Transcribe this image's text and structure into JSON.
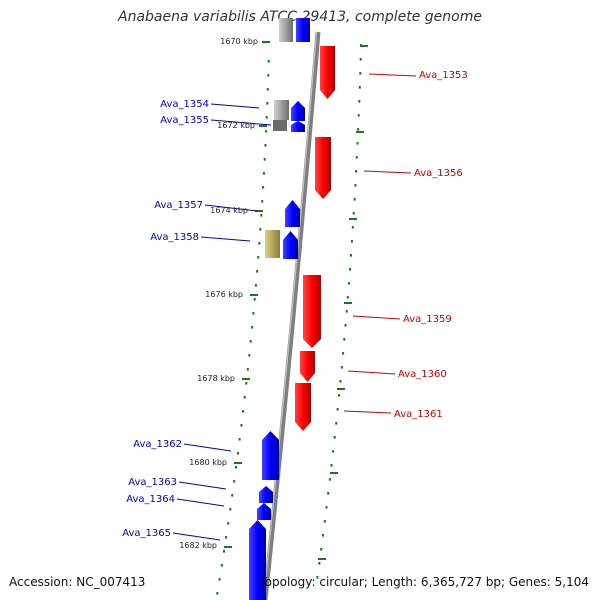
{
  "title": "Anabaena variabilis ATCC 29413, complete genome",
  "footer": {
    "accession": "Accession: NC_007413",
    "stats": "Topology: circular; Length: 6,365,727 bp; Genes: 5,104"
  },
  "colors": {
    "forward_gene": "#0000ff",
    "reverse_gene": "#ff0000",
    "backbone": "#7f7f7f",
    "gc_ticks": "#1a7a1a",
    "pseudo_gene": "#9a9a9a",
    "rna_gene": "#b5a85a"
  },
  "scale_labels": [
    "1670 kbp",
    "1672 kbp",
    "1674 kbp",
    "1676 kbp",
    "1678 kbp",
    "1680 kbp",
    "1682 kbp"
  ],
  "genes_left": [
    "Ava_1354",
    "Ava_1355",
    "Ava_1357",
    "Ava_1358",
    "Ava_1362",
    "Ava_1363",
    "Ava_1364",
    "Ava_1365"
  ],
  "genes_right": [
    "Ava_1353",
    "Ava_1356",
    "Ava_1359",
    "Ava_1360",
    "Ava_1361"
  ]
}
